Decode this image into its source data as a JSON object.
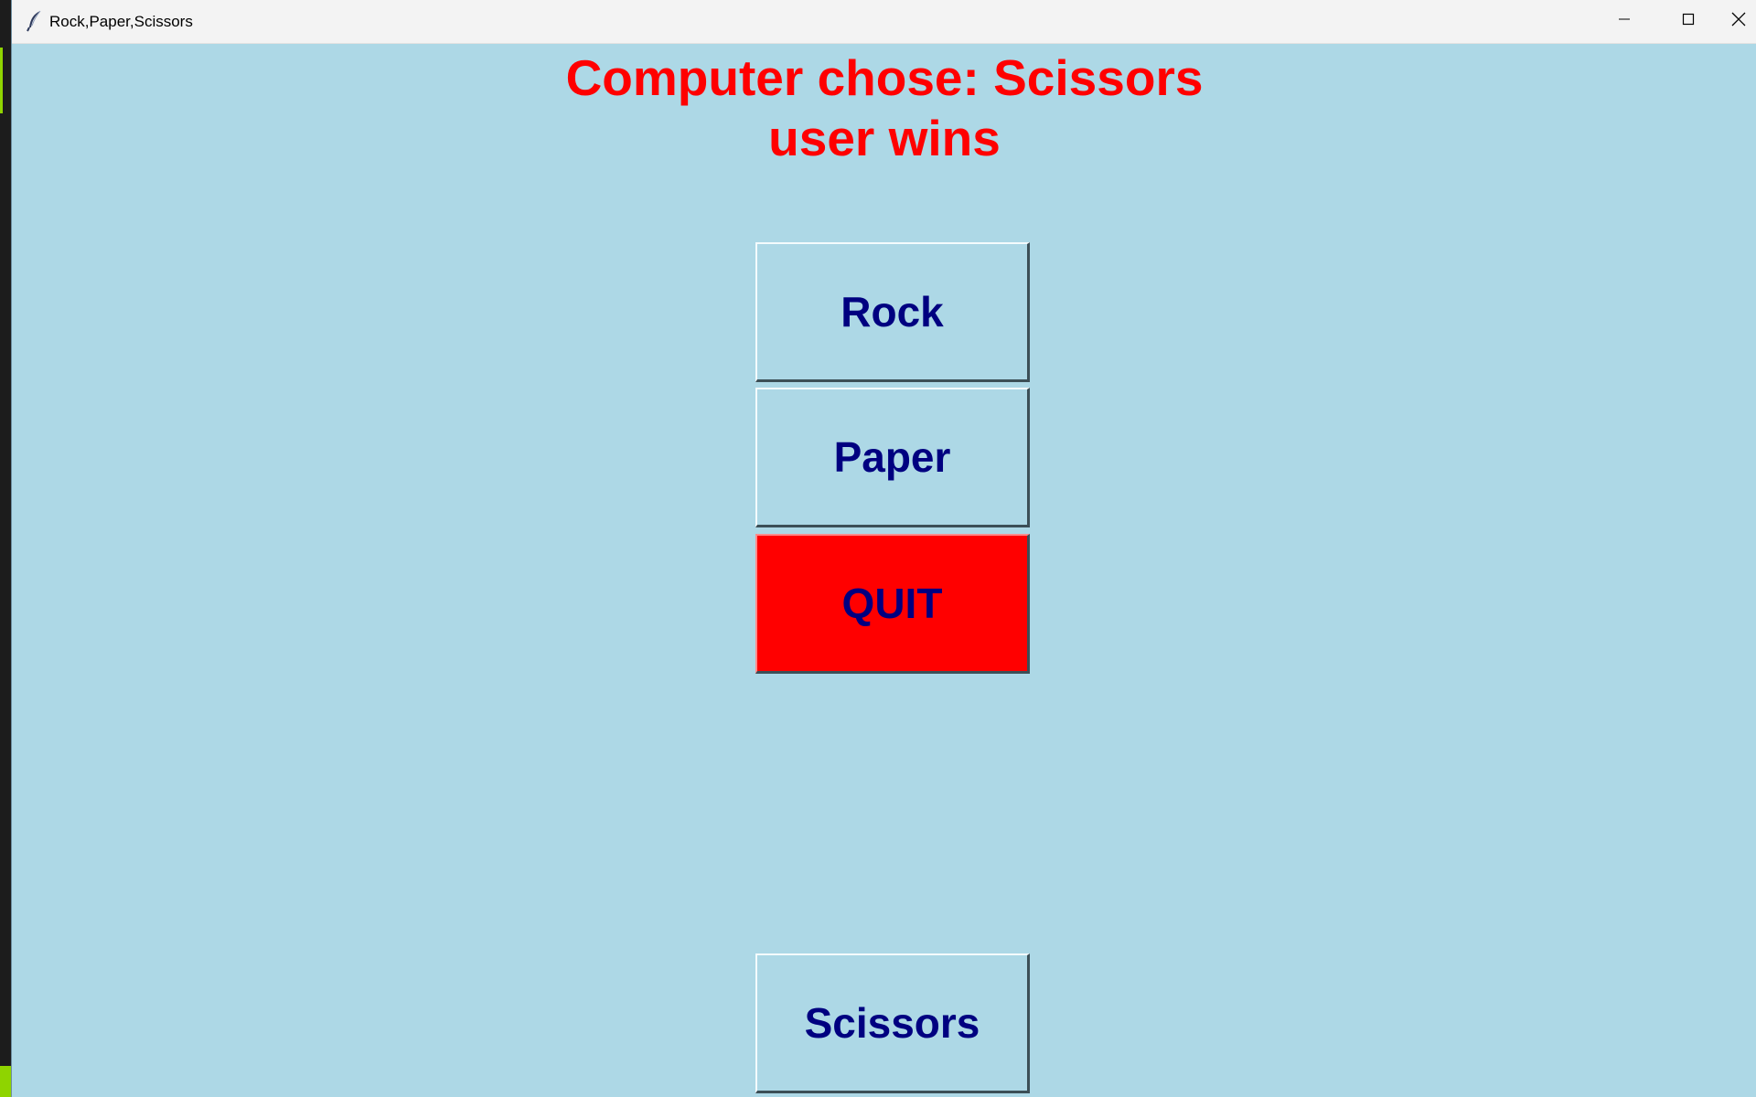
{
  "window": {
    "title": "Rock,Paper,Scissors",
    "icon": "feather-icon",
    "controls": {
      "minimize": "minimize-icon",
      "maximize": "maximize-icon",
      "close": "close-icon"
    }
  },
  "result": {
    "line1": "Computer chose: Scissors",
    "line2": "user wins"
  },
  "buttons": {
    "rock": "Rock",
    "paper": "Paper",
    "quit": "QUIT",
    "scissors": "Scissors"
  },
  "colors": {
    "background": "#add8e6",
    "result_text": "#ff0000",
    "button_text": "#000080",
    "quit_background": "#ff0000"
  }
}
